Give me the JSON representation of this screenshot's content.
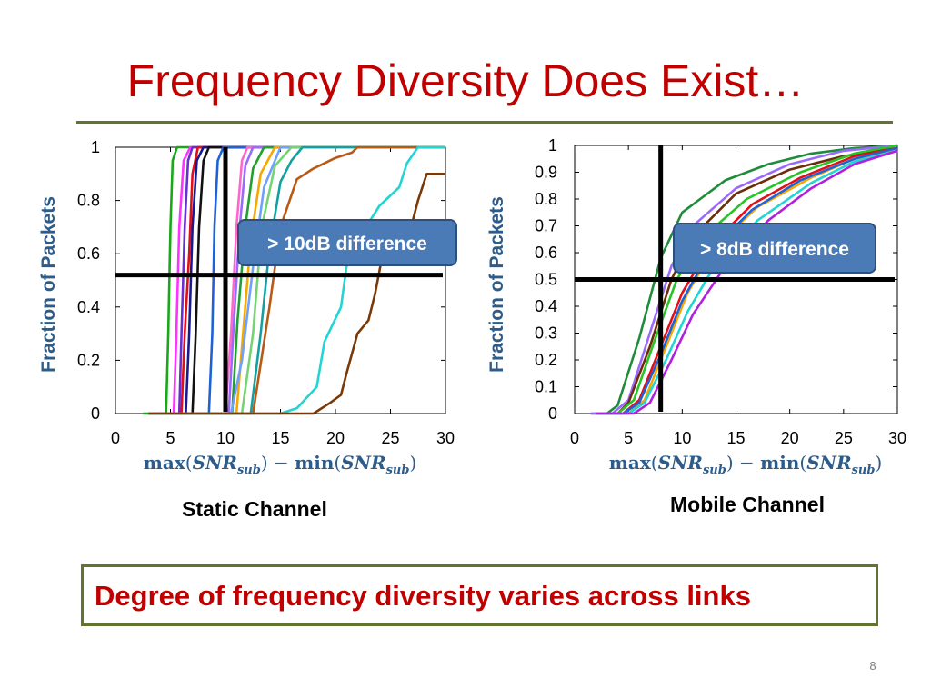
{
  "slide": {
    "title": "Frequency Diversity Does Exist…",
    "conclusion": "Degree of frequency diversity varies across links",
    "page_number": "8"
  },
  "colors": {
    "title": "#c00000",
    "rule": "#5f7530",
    "axis_label": "#2e5c8a",
    "callout_fill": "#4a7bb7",
    "callout_border": "#2f4f7a",
    "marker": "#000000"
  },
  "chart_data": [
    {
      "type": "line",
      "caption": "Static Channel",
      "ylabel": "Fraction of Packets",
      "xlabel_parts": {
        "max": "max",
        "min": "min",
        "var": "SNR",
        "sub": "sub",
        "minus": "−"
      },
      "xlim": [
        0,
        30
      ],
      "ylim": [
        0,
        1
      ],
      "xticks": [
        0,
        5,
        10,
        15,
        20,
        25,
        30
      ],
      "yticks": [
        0,
        0.2,
        0.4,
        0.6,
        0.8,
        1
      ],
      "ytick_labels": [
        "0",
        "0.2",
        "0.4",
        "0.6",
        "0.8",
        "1"
      ],
      "marker_lines": {
        "x": 10,
        "y": 0.52
      },
      "callout": "> 10dB difference",
      "series": [
        {
          "color": "#18a818",
          "points": [
            [
              2.5,
              0
            ],
            [
              4.6,
              0
            ],
            [
              4.8,
              0.3
            ],
            [
              5,
              0.7
            ],
            [
              5.2,
              0.95
            ],
            [
              5.6,
              1
            ],
            [
              30,
              1
            ]
          ]
        },
        {
          "color": "#ff33ff",
          "points": [
            [
              3,
              0
            ],
            [
              5.3,
              0
            ],
            [
              5.5,
              0.25
            ],
            [
              5.8,
              0.7
            ],
            [
              6.2,
              0.95
            ],
            [
              6.8,
              1
            ],
            [
              30,
              1
            ]
          ]
        },
        {
          "color": "#6a2fd0",
          "points": [
            [
              3,
              0
            ],
            [
              5.8,
              0
            ],
            [
              6,
              0.3
            ],
            [
              6.3,
              0.7
            ],
            [
              6.6,
              0.95
            ],
            [
              7,
              1
            ],
            [
              30,
              1
            ]
          ]
        },
        {
          "color": "#e0101a",
          "points": [
            [
              3,
              0
            ],
            [
              6,
              0
            ],
            [
              6.3,
              0.3
            ],
            [
              6.7,
              0.6
            ],
            [
              7,
              0.9
            ],
            [
              7.5,
              1
            ],
            [
              30,
              1
            ]
          ]
        },
        {
          "color": "#1a1a90",
          "points": [
            [
              3,
              0
            ],
            [
              6.4,
              0
            ],
            [
              6.7,
              0.3
            ],
            [
              7,
              0.7
            ],
            [
              7.4,
              0.95
            ],
            [
              8,
              1
            ],
            [
              30,
              1
            ]
          ]
        },
        {
          "color": "#111111",
          "points": [
            [
              3,
              0
            ],
            [
              7,
              0
            ],
            [
              7.3,
              0.3
            ],
            [
              7.6,
              0.7
            ],
            [
              8,
              0.95
            ],
            [
              8.5,
              1
            ],
            [
              30,
              1
            ]
          ]
        },
        {
          "color": "#1f62d8",
          "points": [
            [
              3,
              0
            ],
            [
              8.5,
              0
            ],
            [
              8.8,
              0.3
            ],
            [
              9,
              0.7
            ],
            [
              9.3,
              0.95
            ],
            [
              9.8,
              1
            ],
            [
              30,
              1
            ]
          ]
        },
        {
          "color": "#ff66cc",
          "points": [
            [
              3,
              0
            ],
            [
              10,
              0
            ],
            [
              10.5,
              0.3
            ],
            [
              11,
              0.7
            ],
            [
              11.5,
              0.95
            ],
            [
              12,
              1
            ],
            [
              30,
              1
            ]
          ]
        },
        {
          "color": "#9a6aff",
          "points": [
            [
              3,
              0
            ],
            [
              10.3,
              0
            ],
            [
              10.7,
              0.3
            ],
            [
              11.3,
              0.7
            ],
            [
              11.8,
              0.93
            ],
            [
              12.5,
              1
            ],
            [
              30,
              1
            ]
          ]
        },
        {
          "color": "#20a030",
          "points": [
            [
              3,
              0
            ],
            [
              10.6,
              0
            ],
            [
              11.1,
              0.35
            ],
            [
              11.8,
              0.7
            ],
            [
              12.5,
              0.92
            ],
            [
              13.5,
              1
            ],
            [
              30,
              1
            ]
          ]
        },
        {
          "color": "#f5a800",
          "points": [
            [
              3,
              0
            ],
            [
              11,
              0
            ],
            [
              11.5,
              0.25
            ],
            [
              12.3,
              0.65
            ],
            [
              13.2,
              0.9
            ],
            [
              14.5,
              1
            ],
            [
              30,
              1
            ]
          ]
        },
        {
          "color": "#6ea0ff",
          "points": [
            [
              3,
              0
            ],
            [
              10.5,
              0
            ],
            [
              11.5,
              0.2
            ],
            [
              12.5,
              0.55
            ],
            [
              13.5,
              0.85
            ],
            [
              15,
              1
            ],
            [
              30,
              1
            ]
          ]
        },
        {
          "color": "#74d474",
          "points": [
            [
              3,
              0
            ],
            [
              11.5,
              0
            ],
            [
              12.5,
              0.3
            ],
            [
              13.3,
              0.7
            ],
            [
              14.5,
              0.93
            ],
            [
              16,
              1
            ],
            [
              30,
              1
            ]
          ]
        },
        {
          "color": "#14a0a0",
          "points": [
            [
              3,
              0
            ],
            [
              12.3,
              0
            ],
            [
              13.2,
              0.3
            ],
            [
              14,
              0.62
            ],
            [
              15,
              0.87
            ],
            [
              16,
              0.95
            ],
            [
              17,
              1
            ],
            [
              30,
              1
            ]
          ]
        },
        {
          "color": "#b85a16",
          "points": [
            [
              3,
              0
            ],
            [
              12.5,
              0
            ],
            [
              14,
              0.4
            ],
            [
              15,
              0.7
            ],
            [
              16.5,
              0.88
            ],
            [
              18,
              0.92
            ],
            [
              20,
              0.96
            ],
            [
              21.5,
              0.98
            ],
            [
              22,
              1
            ],
            [
              30,
              1
            ]
          ]
        },
        {
          "color": "#22d4d4",
          "points": [
            [
              3,
              0
            ],
            [
              15,
              0
            ],
            [
              16.5,
              0.02
            ],
            [
              18.3,
              0.1
            ],
            [
              19,
              0.27
            ],
            [
              20.5,
              0.4
            ],
            [
              21,
              0.55
            ],
            [
              22,
              0.65
            ],
            [
              24,
              0.78
            ],
            [
              25.8,
              0.85
            ],
            [
              26.5,
              0.94
            ],
            [
              27.5,
              1
            ],
            [
              30,
              1
            ]
          ]
        },
        {
          "color": "#7a3a08",
          "points": [
            [
              3,
              0
            ],
            [
              18,
              0
            ],
            [
              19.5,
              0.04
            ],
            [
              20.5,
              0.07
            ],
            [
              21,
              0.15
            ],
            [
              22,
              0.3
            ],
            [
              23,
              0.35
            ],
            [
              23.6,
              0.45
            ],
            [
              24.3,
              0.6
            ],
            [
              25.5,
              0.68
            ],
            [
              27,
              0.72
            ],
            [
              27.5,
              0.8
            ],
            [
              28.3,
              0.9
            ],
            [
              30,
              0.9
            ]
          ]
        }
      ]
    },
    {
      "type": "line",
      "caption": "Mobile Channel",
      "ylabel": "Fraction of Packets",
      "xlabel_parts": {
        "max": "max",
        "min": "min",
        "var": "SNR",
        "sub": "sub",
        "minus": "−"
      },
      "xlim": [
        0,
        30
      ],
      "ylim": [
        0,
        1
      ],
      "xticks": [
        0,
        5,
        10,
        15,
        20,
        25,
        30
      ],
      "yticks": [
        0,
        0.1,
        0.2,
        0.3,
        0.4,
        0.5,
        0.6,
        0.7,
        0.8,
        0.9,
        1
      ],
      "ytick_labels": [
        "0",
        "0.1",
        "0.2",
        "0.3",
        "0.4",
        "0.5",
        "0.6",
        "0.7",
        "0.8",
        "0.9",
        "1"
      ],
      "marker_lines": {
        "x": 8,
        "y": 0.5
      },
      "callout": "> 8dB difference",
      "series": [
        {
          "color": "#1f8c3a",
          "points": [
            [
              1.5,
              0
            ],
            [
              3,
              0
            ],
            [
              4,
              0.03
            ],
            [
              6,
              0.28
            ],
            [
              8,
              0.58
            ],
            [
              10,
              0.75
            ],
            [
              14,
              0.87
            ],
            [
              18,
              0.93
            ],
            [
              22,
              0.97
            ],
            [
              26,
              0.99
            ],
            [
              30,
              1
            ]
          ]
        },
        {
          "color": "#9a6aff",
          "points": [
            [
              1.5,
              0
            ],
            [
              3.5,
              0
            ],
            [
              5,
              0.05
            ],
            [
              7,
              0.3
            ],
            [
              9,
              0.55
            ],
            [
              11,
              0.7
            ],
            [
              15,
              0.84
            ],
            [
              20,
              0.93
            ],
            [
              25,
              0.98
            ],
            [
              30,
              1
            ]
          ]
        },
        {
          "color": "#6e2d0a",
          "points": [
            [
              2,
              0
            ],
            [
              4,
              0
            ],
            [
              5,
              0.04
            ],
            [
              7,
              0.25
            ],
            [
              9,
              0.5
            ],
            [
              11,
              0.66
            ],
            [
              15,
              0.82
            ],
            [
              20,
              0.91
            ],
            [
              25,
              0.96
            ],
            [
              30,
              0.99
            ]
          ]
        },
        {
          "color": "#26c426",
          "points": [
            [
              2,
              0
            ],
            [
              4,
              0
            ],
            [
              5.5,
              0.05
            ],
            [
              7.5,
              0.28
            ],
            [
              9.5,
              0.5
            ],
            [
              12,
              0.66
            ],
            [
              16,
              0.8
            ],
            [
              21,
              0.9
            ],
            [
              26,
              0.97
            ],
            [
              30,
              1
            ]
          ]
        },
        {
          "color": "#e0101a",
          "points": [
            [
              2,
              0
            ],
            [
              4.5,
              0
            ],
            [
              6,
              0.05
            ],
            [
              8,
              0.25
            ],
            [
              10,
              0.45
            ],
            [
              12.5,
              0.62
            ],
            [
              16.5,
              0.78
            ],
            [
              21,
              0.88
            ],
            [
              26,
              0.96
            ],
            [
              30,
              0.99
            ]
          ]
        },
        {
          "color": "#f5a800",
          "points": [
            [
              2,
              0
            ],
            [
              5,
              0
            ],
            [
              6.5,
              0.05
            ],
            [
              8.5,
              0.25
            ],
            [
              10.5,
              0.45
            ],
            [
              13,
              0.62
            ],
            [
              17,
              0.77
            ],
            [
              22,
              0.88
            ],
            [
              26,
              0.95
            ],
            [
              30,
              0.98
            ]
          ]
        },
        {
          "color": "#1f62d8",
          "points": [
            [
              2,
              0
            ],
            [
              4.5,
              0
            ],
            [
              6,
              0.04
            ],
            [
              8,
              0.22
            ],
            [
              10,
              0.42
            ],
            [
              12.5,
              0.6
            ],
            [
              16.5,
              0.76
            ],
            [
              21,
              0.87
            ],
            [
              26,
              0.95
            ],
            [
              30,
              0.99
            ]
          ]
        },
        {
          "color": "#22d4d4",
          "points": [
            [
              2,
              0
            ],
            [
              5,
              0
            ],
            [
              6.5,
              0.04
            ],
            [
              8.5,
              0.2
            ],
            [
              10.5,
              0.38
            ],
            [
              13,
              0.55
            ],
            [
              17,
              0.72
            ],
            [
              22,
              0.86
            ],
            [
              26,
              0.94
            ],
            [
              30,
              0.98
            ]
          ]
        },
        {
          "color": "#b020e0",
          "points": [
            [
              2,
              0
            ],
            [
              5.5,
              0
            ],
            [
              7,
              0.04
            ],
            [
              9,
              0.2
            ],
            [
              11,
              0.37
            ],
            [
              14,
              0.55
            ],
            [
              18,
              0.72
            ],
            [
              22,
              0.84
            ],
            [
              26,
              0.93
            ],
            [
              30,
              0.98
            ]
          ]
        }
      ]
    }
  ]
}
